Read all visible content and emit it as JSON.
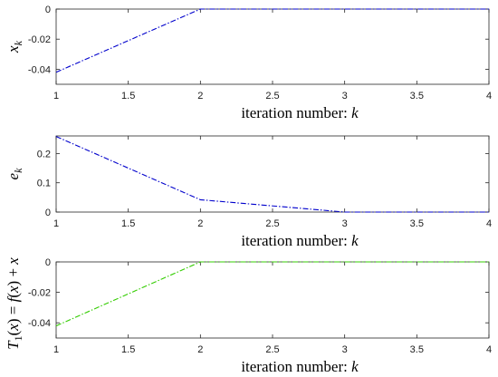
{
  "chart_data": [
    {
      "type": "line",
      "title": "",
      "xlabel_text": "iteration number: ",
      "xlabel_var": "k",
      "ylabel": "x_k",
      "xlim": [
        1,
        4
      ],
      "ylim": [
        -0.05,
        0
      ],
      "xticks": [
        "1",
        "1.5",
        "2",
        "2.5",
        "3",
        "3.5",
        "4"
      ],
      "yticks": [
        "0",
        "-0.02",
        "-0.04"
      ],
      "ytick_values": [
        0,
        -0.02,
        -0.04
      ],
      "grid": false,
      "series": [
        {
          "color": "#0000cc",
          "linestyle": "dash-dot",
          "x": [
            1,
            2,
            3,
            4
          ],
          "y": [
            -0.042,
            0,
            0,
            0
          ]
        }
      ]
    },
    {
      "type": "line",
      "title": "",
      "xlabel_text": "iteration number: ",
      "xlabel_var": "k",
      "ylabel": "e_k",
      "xlim": [
        1,
        4
      ],
      "ylim": [
        0,
        0.26
      ],
      "xticks": [
        "1",
        "1.5",
        "2",
        "2.5",
        "3",
        "3.5",
        "4"
      ],
      "yticks": [
        "0.2",
        "0.1",
        "0"
      ],
      "ytick_values": [
        0.2,
        0.1,
        0
      ],
      "grid": false,
      "series": [
        {
          "color": "#0000cc",
          "linestyle": "dash-dot",
          "x": [
            1,
            2,
            3,
            4
          ],
          "y": [
            0.258,
            0.042,
            0,
            0
          ]
        }
      ]
    },
    {
      "type": "line",
      "title": "",
      "xlabel_text": "iteration number: ",
      "xlabel_var": "k",
      "ylabel": "T_1(x) = f(x) + x",
      "xlim": [
        1,
        4
      ],
      "ylim": [
        -0.05,
        0
      ],
      "xticks": [
        "1",
        "1.5",
        "2",
        "2.5",
        "3",
        "3.5",
        "4"
      ],
      "yticks": [
        "0",
        "-0.02",
        "-0.04"
      ],
      "ytick_values": [
        0,
        -0.02,
        -0.04
      ],
      "grid": false,
      "series": [
        {
          "color": "#33cc00",
          "linestyle": "dash-dot",
          "x": [
            1,
            2,
            3,
            4
          ],
          "y": [
            -0.042,
            0,
            0,
            0
          ]
        }
      ]
    }
  ]
}
